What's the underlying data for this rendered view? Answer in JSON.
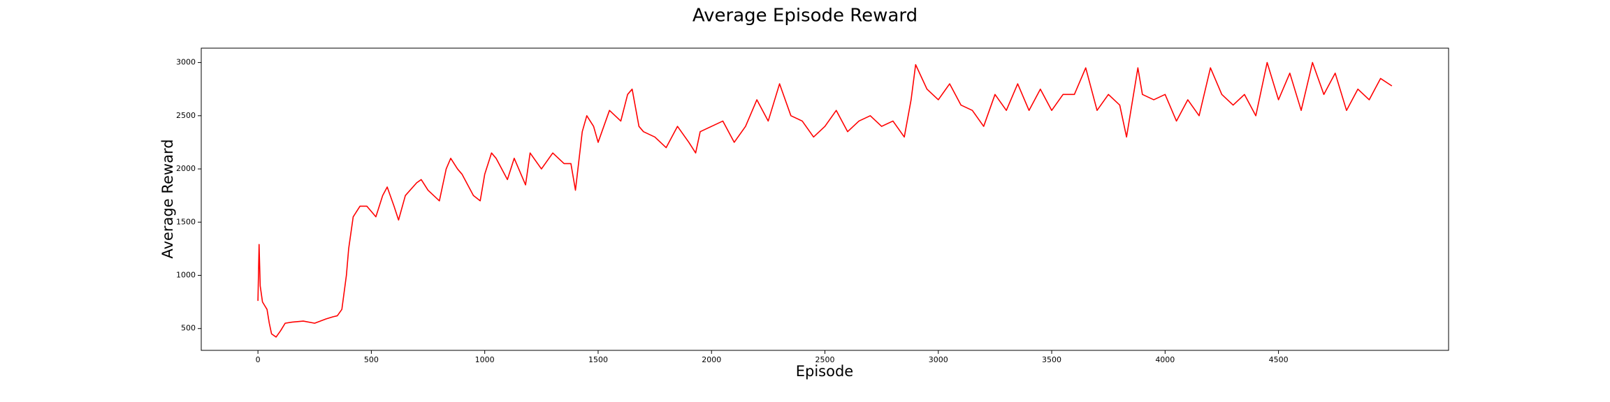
{
  "chart_data": {
    "type": "line",
    "title": "Average Episode Reward",
    "x_label": "Episode",
    "y_label": "Average Reward",
    "x": [
      0,
      5,
      10,
      20,
      40,
      50,
      60,
      80,
      100,
      120,
      150,
      200,
      250,
      300,
      330,
      350,
      370,
      390,
      400,
      420,
      450,
      480,
      500,
      520,
      550,
      570,
      600,
      620,
      650,
      700,
      720,
      750,
      800,
      830,
      850,
      880,
      900,
      950,
      980,
      1000,
      1030,
      1050,
      1100,
      1130,
      1150,
      1180,
      1200,
      1250,
      1300,
      1350,
      1380,
      1400,
      1430,
      1450,
      1480,
      1500,
      1550,
      1600,
      1630,
      1650,
      1680,
      1700,
      1750,
      1800,
      1850,
      1900,
      1930,
      1950,
      2000,
      2050,
      2100,
      2150,
      2200,
      2250,
      2300,
      2350,
      2400,
      2450,
      2500,
      2550,
      2600,
      2650,
      2700,
      2750,
      2800,
      2850,
      2880,
      2900,
      2950,
      3000,
      3050,
      3100,
      3150,
      3200,
      3250,
      3300,
      3350,
      3400,
      3450,
      3500,
      3550,
      3600,
      3650,
      3700,
      3750,
      3800,
      3830,
      3880,
      3900,
      3950,
      4000,
      4050,
      4100,
      4150,
      4200,
      4250,
      4300,
      4350,
      4400,
      4450,
      4500,
      4550,
      4600,
      4650,
      4700,
      4750,
      4800,
      4850,
      4900,
      4950,
      5000
    ],
    "series": [
      {
        "name": "Average Reward",
        "color": "#ff0000",
        "values": [
          760,
          1290,
          900,
          750,
          680,
          550,
          450,
          420,
          480,
          550,
          560,
          570,
          550,
          590,
          610,
          620,
          680,
          1000,
          1250,
          1550,
          1650,
          1650,
          1600,
          1550,
          1750,
          1830,
          1650,
          1520,
          1750,
          1870,
          1900,
          1800,
          1700,
          2000,
          2100,
          2000,
          1950,
          1750,
          1700,
          1950,
          2150,
          2100,
          1900,
          2100,
          2000,
          1850,
          2150,
          2000,
          2150,
          2050,
          2050,
          1800,
          2350,
          2500,
          2400,
          2250,
          2550,
          2450,
          2700,
          2750,
          2400,
          2350,
          2300,
          2200,
          2400,
          2250,
          2150,
          2350,
          2400,
          2450,
          2250,
          2400,
          2650,
          2450,
          2800,
          2500,
          2450,
          2300,
          2400,
          2550,
          2350,
          2450,
          2500,
          2400,
          2450,
          2300,
          2650,
          2980,
          2750,
          2650,
          2800,
          2600,
          2550,
          2400,
          2700,
          2550,
          2800,
          2550,
          2750,
          2550,
          2700,
          2700,
          2950,
          2550,
          2700,
          2600,
          2300,
          2950,
          2700,
          2650,
          2700,
          2450,
          2650,
          2500,
          2950,
          2700,
          2600,
          2700,
          2500,
          3000,
          2650,
          2900,
          2550,
          3000,
          2700,
          2900,
          2550,
          2750,
          2650,
          2850,
          2780
        ]
      }
    ],
    "xlim": [
      -250,
      5250
    ],
    "ylim": [
      295,
      3135
    ],
    "xticks": [
      0,
      500,
      1000,
      1500,
      2000,
      2500,
      3000,
      3500,
      4000,
      4500
    ],
    "yticks": [
      500,
      1000,
      1500,
      2000,
      2500,
      3000
    ]
  }
}
